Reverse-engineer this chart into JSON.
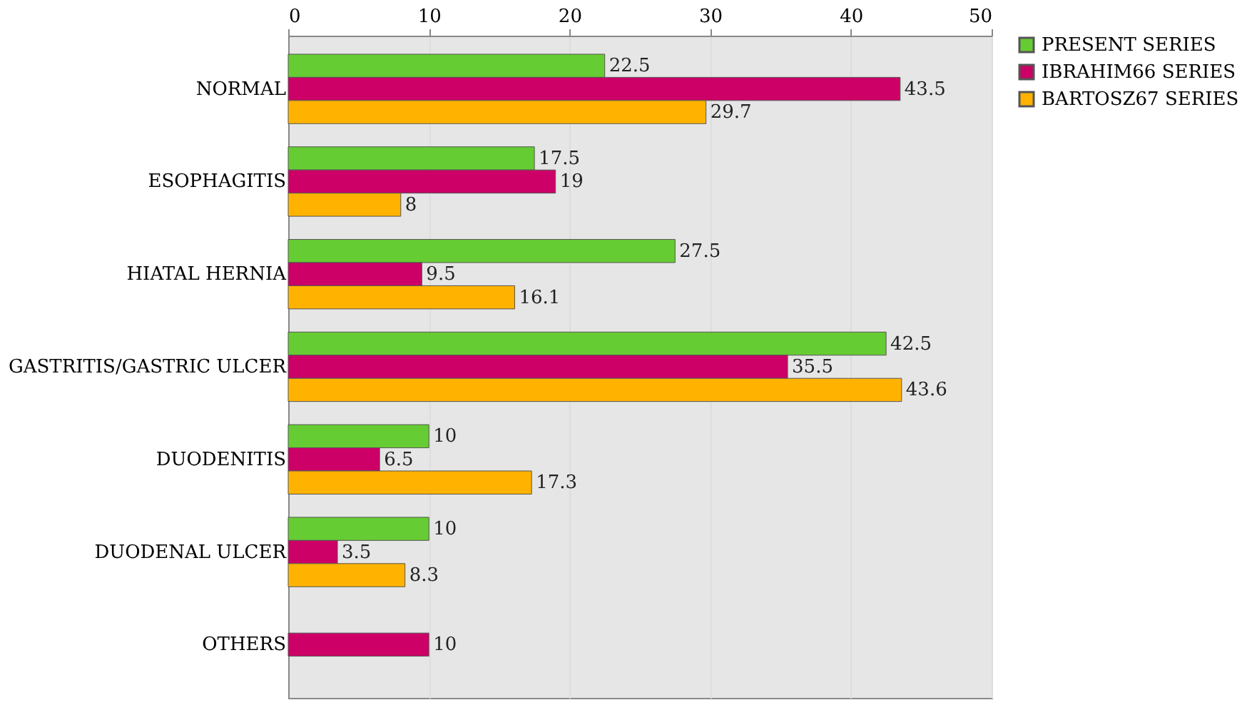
{
  "chart_data": {
    "type": "bar",
    "orientation": "horizontal",
    "categories": [
      "NORMAL",
      "ESOPHAGITIS",
      "HIATAL HERNIA",
      "GASTRITIS/GASTRIC ULCER",
      "DUODENITIS",
      "DUODENAL ULCER",
      "OTHERS"
    ],
    "series": [
      {
        "name": "PRESENT SERIES",
        "color": "#66cc33",
        "values": [
          22.5,
          17.5,
          27.5,
          42.5,
          10,
          10,
          null
        ]
      },
      {
        "name": "IBRAHIM66 SERIES",
        "color": "#cc0066",
        "values": [
          43.5,
          19,
          9.5,
          35.5,
          6.5,
          3.5,
          10
        ]
      },
      {
        "name": "BARTOSZ67 SERIES",
        "color": "#ffb300",
        "values": [
          29.7,
          8,
          16.1,
          43.6,
          17.3,
          8.3,
          null
        ]
      }
    ],
    "xlim": [
      0,
      50
    ],
    "xticks": [
      0,
      10,
      20,
      30,
      40,
      50
    ],
    "grid": "x",
    "legend": "right",
    "data_labels": true
  }
}
